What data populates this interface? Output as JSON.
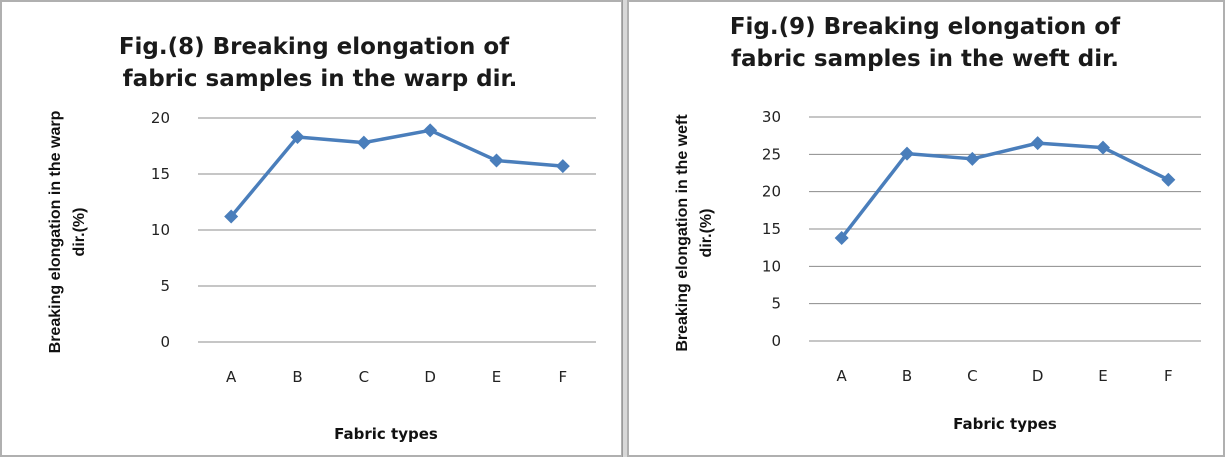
{
  "chart_data": [
    {
      "type": "line",
      "title_lines": [
        "Fig.(8) Breaking elongation of",
        "fabric samples in the warp dir."
      ],
      "xlabel": "Fabric types",
      "ylabel_lines": [
        "Breaking elongation in the warp",
        "dir.(%)"
      ],
      "categories": [
        "A",
        "B",
        "C",
        "D",
        "E",
        "F"
      ],
      "series": [
        {
          "values": [
            11.2,
            18.3,
            17.8,
            18.9,
            16.2,
            15.7
          ]
        }
      ],
      "ylim": [
        0,
        20
      ],
      "yticks": [
        0,
        5,
        10,
        15,
        20
      ],
      "grid": true,
      "color": "#4a7ebb"
    },
    {
      "type": "line",
      "title_lines": [
        "Fig.(9) Breaking elongation of",
        "fabric samples in the weft dir."
      ],
      "xlabel": "Fabric types",
      "ylabel_lines": [
        "Breaking elongation in the weft",
        "dir.(%)"
      ],
      "categories": [
        "A",
        "B",
        "C",
        "D",
        "E",
        "F"
      ],
      "series": [
        {
          "values": [
            13.8,
            25.1,
            24.4,
            26.5,
            25.9,
            21.6
          ]
        }
      ],
      "ylim": [
        0,
        30
      ],
      "yticks": [
        0,
        5,
        10,
        15,
        20,
        25,
        30
      ],
      "grid": true,
      "color": "#4a7ebb"
    }
  ]
}
